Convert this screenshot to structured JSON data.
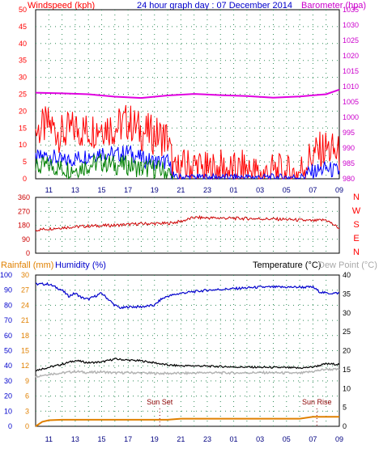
{
  "header": {
    "left_title": "Windspeed (kph)",
    "center_title": "24 hour graph day : 07 December 2014",
    "right_title": "Barometer (hpa)"
  },
  "x_ticks": [
    "11",
    "13",
    "15",
    "17",
    "19",
    "21",
    "23",
    "01",
    "03",
    "05",
    "07",
    "09"
  ],
  "chart_data": [
    {
      "type": "line",
      "panel": "wind-and-barometer",
      "x_unit": "hour (10:00 → 09:00 next day)",
      "x_ticks": [
        "11",
        "13",
        "15",
        "17",
        "19",
        "21",
        "23",
        "01",
        "03",
        "05",
        "07",
        "09"
      ],
      "left_axis": {
        "label": "Windspeed (kph)",
        "ticks": [
          0,
          5,
          10,
          15,
          20,
          25,
          30,
          35,
          40,
          45,
          50
        ],
        "range": [
          0,
          50
        ]
      },
      "right_axis": {
        "label": "Barometer (hpa)",
        "ticks": [
          980,
          985,
          990,
          995,
          1000,
          1005,
          1010,
          1015,
          1020,
          1025,
          1030,
          1035
        ],
        "range": [
          980,
          1035
        ]
      },
      "series": [
        {
          "name": "Barometer",
          "axis": "right",
          "color": "#e000e0",
          "x": [
            10,
            12,
            14,
            16,
            18,
            20,
            22,
            24,
            26,
            28,
            30,
            32,
            33
          ],
          "y": [
            1008.0,
            1007.8,
            1007.5,
            1006.7,
            1006.3,
            1007.1,
            1007.6,
            1007.2,
            1006.9,
            1006.4,
            1006.8,
            1007.5,
            1009.0
          ]
        },
        {
          "name": "Gust",
          "axis": "left",
          "color": "#ff0000",
          "x": [
            10,
            11,
            12,
            13,
            14,
            15,
            16,
            17,
            18,
            19,
            20,
            20.5,
            21,
            22,
            23,
            24,
            25,
            26,
            27,
            28,
            29,
            30,
            30.5,
            31,
            32,
            33
          ],
          "y": [
            14,
            16,
            13,
            15,
            14,
            16,
            15,
            17,
            14,
            13,
            12,
            1,
            3,
            4,
            2,
            3,
            2,
            3,
            1,
            2,
            1,
            2,
            5,
            7,
            9,
            7
          ]
        },
        {
          "name": "Average speed",
          "axis": "left",
          "color": "#0000ff",
          "x": [
            10,
            11,
            12,
            13,
            14,
            15,
            16,
            17,
            18,
            19,
            20,
            20.5,
            21,
            22,
            23,
            24,
            25,
            26,
            27,
            28,
            29,
            30,
            31,
            32,
            33
          ],
          "y": [
            6,
            7,
            5,
            6,
            7,
            8,
            7,
            8,
            6,
            5,
            5,
            0.5,
            0.5,
            0.5,
            0.5,
            0.5,
            0.5,
            0.5,
            0.5,
            0.5,
            0.5,
            0.5,
            2,
            3,
            2
          ]
        },
        {
          "name": "Wind",
          "axis": "left",
          "color": "#008000",
          "x": [
            10,
            11,
            12,
            13,
            14,
            15,
            16,
            17,
            18,
            19,
            20,
            20.5
          ],
          "y": [
            3,
            4,
            3,
            3,
            4,
            5,
            4,
            4,
            3,
            3,
            2,
            0
          ]
        }
      ]
    },
    {
      "type": "line",
      "panel": "wind-direction",
      "left_axis": {
        "ticks": [
          0,
          90,
          180,
          270,
          360
        ],
        "range": [
          0,
          360
        ]
      },
      "right_labels": [
        "N",
        "W",
        "S",
        "E",
        "N"
      ],
      "series": [
        {
          "name": "Wind direction",
          "color": "#cc0000",
          "x": [
            10,
            12,
            14,
            16,
            18,
            20,
            21,
            22,
            23,
            25,
            27,
            29,
            31,
            32,
            33
          ],
          "y": [
            150,
            165,
            175,
            180,
            190,
            192,
            205,
            230,
            228,
            225,
            222,
            218,
            208,
            215,
            160
          ]
        }
      ]
    },
    {
      "type": "line",
      "panel": "humidity-temperature-rain",
      "header_labels": {
        "rainfall": "Rainfall (mm)",
        "humidity": "Humidity (%)",
        "temperature": "Temperature (°C)",
        "dewpoint": "Dew Point (°C)"
      },
      "left_humidity_axis": {
        "ticks": [
          0,
          10,
          20,
          30,
          40,
          50,
          60,
          70,
          80,
          90,
          100
        ],
        "range": [
          0,
          100
        ]
      },
      "left_rain_axis": {
        "ticks": [
          0,
          3,
          6,
          9,
          12,
          15,
          18,
          21,
          24,
          27,
          30
        ],
        "range": [
          0,
          30
        ]
      },
      "right_temp_axis": {
        "ticks": [
          0,
          5,
          10,
          15,
          20,
          25,
          30,
          35,
          40
        ],
        "range": [
          0,
          40
        ]
      },
      "annotations": [
        {
          "label": "Sun Set",
          "x": 19.4
        },
        {
          "label": "Sun Rise",
          "x": 31.3
        }
      ],
      "series": [
        {
          "name": "Humidity",
          "color": "#0000cc",
          "x": [
            10,
            11,
            12,
            12.5,
            13,
            13.5,
            14,
            14.5,
            15,
            15.5,
            16,
            16.5,
            17,
            18,
            19,
            19.5,
            20,
            21,
            22,
            23,
            25,
            27,
            29,
            30,
            31,
            31.5,
            32,
            33
          ],
          "y": [
            94,
            94,
            90,
            86,
            88,
            85,
            84,
            86,
            88,
            84,
            80,
            78,
            79,
            79,
            80,
            84,
            86,
            88,
            89,
            90,
            91,
            92,
            92,
            92,
            92,
            89,
            88,
            88
          ]
        },
        {
          "name": "Temperature",
          "color": "#000000",
          "x": [
            10,
            11,
            12,
            13,
            14,
            15,
            16,
            17,
            18,
            19,
            20,
            21,
            22,
            23,
            25,
            27,
            29,
            30,
            31,
            32,
            33
          ],
          "y": [
            14.8,
            15.6,
            16.4,
            17.4,
            16.8,
            17.0,
            17.8,
            17.5,
            17.3,
            16.8,
            16.2,
            16.0,
            16.0,
            15.9,
            15.7,
            15.6,
            15.5,
            15.4,
            15.7,
            16.5,
            16.4
          ]
        },
        {
          "name": "Dew Point",
          "color": "#b4b4b4",
          "x": [
            10,
            11,
            12,
            13,
            14,
            15,
            16,
            17,
            18,
            19,
            20,
            21,
            22,
            23,
            25,
            27,
            29,
            30,
            31,
            32,
            33
          ],
          "y": [
            13.2,
            13.8,
            14.1,
            14.5,
            14.2,
            14.4,
            14.1,
            14.2,
            14.1,
            14.0,
            14.0,
            14.0,
            14.1,
            14.2,
            14.1,
            14.2,
            14.1,
            14.0,
            14.5,
            15.1,
            15.0
          ]
        },
        {
          "name": "Rainfall",
          "color": "#e08000",
          "x": [
            10,
            10.5,
            11,
            12,
            20,
            21,
            30,
            31,
            32,
            33
          ],
          "y": [
            0,
            0.9,
            1.2,
            1.3,
            1.3,
            1.5,
            1.5,
            1.9,
            1.9,
            1.9
          ]
        }
      ]
    }
  ]
}
